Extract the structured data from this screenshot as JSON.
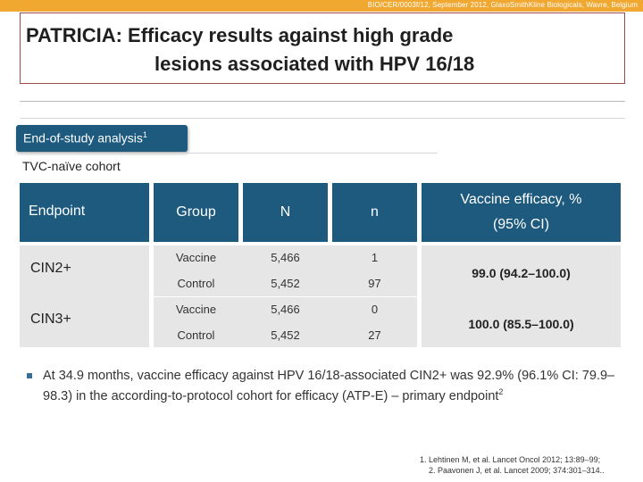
{
  "header": {
    "source_line": "BIO/CER/0003f/12, September 2012, GlaxoSmithKline Biologicals, Wavre, Belgium"
  },
  "title": {
    "line1": "PATRICIA:  Efficacy results against high grade",
    "line2": "lesions associated with HPV 16/18"
  },
  "section": {
    "tab_label": "End-of-study analysis",
    "tab_ref": "1",
    "cohort_label": "TVC-naïve cohort"
  },
  "table": {
    "headers": {
      "endpoint": "Endpoint",
      "group": "Group",
      "n_total": "N",
      "n_cases": "n",
      "ve_line1": "Vaccine efficacy, %",
      "ve_line2": "(95% CI)"
    },
    "endpoints": [
      {
        "label": "CIN2+",
        "efficacy": "99.0 (94.2–100.0)",
        "rows": [
          {
            "group": "Vaccine",
            "N": "5,466",
            "n": "1"
          },
          {
            "group": "Control",
            "N": "5,452",
            "n": "97"
          }
        ]
      },
      {
        "label": "CIN3+",
        "efficacy": "100.0 (85.5–100.0)",
        "rows": [
          {
            "group": "Vaccine",
            "N": "5,466",
            "n": "0"
          },
          {
            "group": "Control",
            "N": "5,452",
            "n": "27"
          }
        ]
      }
    ]
  },
  "note": {
    "text": "At 34.9 months, vaccine efficacy against HPV 16/18-associated CIN2+ was 92.9%  (96.1% CI: 79.9–98.3) in the according-to-protocol cohort for efficacy (ATP-E) – primary endpoint",
    "ref": "2"
  },
  "references": {
    "ref1": "1. Lehtinen M, et al. Lancet Oncol 2012; 13:89–99;",
    "ref2": "2. Paavonen J, et al. Lancet 2009; 374:301–314.."
  },
  "colors": {
    "accent_bar": "#f0a830",
    "header_fill": "#1d5a7e",
    "cell_fill": "#e6e6e6",
    "title_border": "#9b4a4a"
  }
}
